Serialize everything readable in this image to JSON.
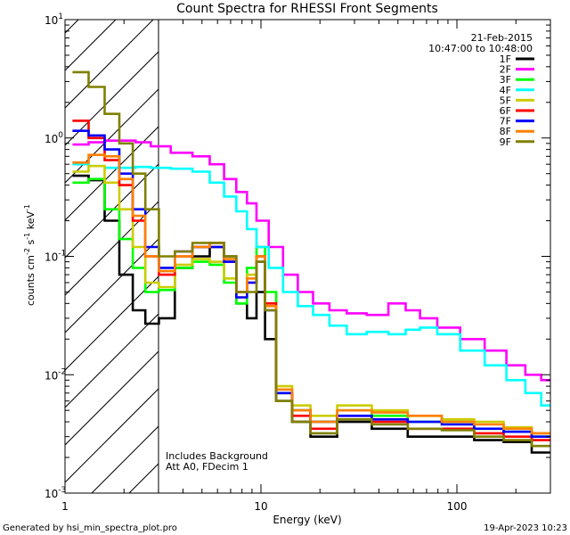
{
  "chart_data": {
    "type": "line",
    "title": "Count Spectra for RHESSI Front Segments",
    "xlabel": "Energy (keV)",
    "ylabel_main": "counts cm",
    "ylabel_exp1": "-2",
    "ylabel_mid": " s",
    "ylabel_exp2": "-1",
    "ylabel_end": " keV",
    "ylabel_exp3": "-1",
    "x_scale": "log",
    "y_scale": "log",
    "xlim": [
      1,
      300
    ],
    "ylim": [
      0.001,
      10
    ],
    "x_ticks": [
      {
        "value": 1,
        "label": "1"
      },
      {
        "value": 10,
        "label": "10"
      },
      {
        "value": 100,
        "label": "100"
      }
    ],
    "y_ticks": [
      {
        "value": 10,
        "base": "10",
        "exp": "1"
      },
      {
        "value": 1,
        "base": "10",
        "exp": "0"
      },
      {
        "value": 0.1,
        "base": "10",
        "exp": "-1"
      },
      {
        "value": 0.01,
        "base": "10",
        "exp": "-2"
      },
      {
        "value": 0.001,
        "base": "10",
        "exp": "-3"
      }
    ],
    "hatched_region": {
      "from": 1,
      "to": 3
    },
    "date": "21-Feb-2015",
    "time_range": "10:47:00 to 10:48:00",
    "annotations": [
      "Includes Background",
      "Att A0, FDecim 1"
    ],
    "footer_left": "Generated by hsi_min_spectra_plot.pro",
    "footer_right": "19-Apr-2023 10:23",
    "series": [
      {
        "name": "1F",
        "color": "#000000",
        "points": [
          [
            1.2,
            0.48
          ],
          [
            1.45,
            0.44
          ],
          [
            1.75,
            0.2
          ],
          [
            2.05,
            0.07
          ],
          [
            2.4,
            0.035
          ],
          [
            2.75,
            0.027
          ],
          [
            3.3,
            0.03
          ],
          [
            4,
            0.08
          ],
          [
            5,
            0.1
          ],
          [
            6,
            0.12
          ],
          [
            7,
            0.1
          ],
          [
            8,
            0.04
          ],
          [
            9,
            0.03
          ],
          [
            10,
            0.05
          ],
          [
            11,
            0.02
          ],
          [
            13,
            0.006
          ],
          [
            16,
            0.004
          ],
          [
            20,
            0.003
          ],
          [
            30,
            0.004
          ],
          [
            45,
            0.0035
          ],
          [
            70,
            0.003
          ],
          [
            100,
            0.003
          ],
          [
            150,
            0.0028
          ],
          [
            200,
            0.0027
          ],
          [
            290,
            0.0022
          ]
        ]
      },
      {
        "name": "2F",
        "color": "#ff00ff",
        "points": [
          [
            1.2,
            0.88
          ],
          [
            1.45,
            0.92
          ],
          [
            1.75,
            0.95
          ],
          [
            2.1,
            0.95
          ],
          [
            2.5,
            0.92
          ],
          [
            3,
            0.85
          ],
          [
            4,
            0.75
          ],
          [
            5,
            0.7
          ],
          [
            6,
            0.6
          ],
          [
            7,
            0.45
          ],
          [
            8,
            0.35
          ],
          [
            9,
            0.28
          ],
          [
            10,
            0.2
          ],
          [
            12,
            0.12
          ],
          [
            14,
            0.07
          ],
          [
            17,
            0.05
          ],
          [
            20,
            0.04
          ],
          [
            25,
            0.035
          ],
          [
            30,
            0.033
          ],
          [
            40,
            0.032
          ],
          [
            50,
            0.04
          ],
          [
            60,
            0.035
          ],
          [
            70,
            0.03
          ],
          [
            90,
            0.025
          ],
          [
            120,
            0.02
          ],
          [
            160,
            0.016
          ],
          [
            200,
            0.012
          ],
          [
            250,
            0.01
          ],
          [
            290,
            0.009
          ]
        ]
      },
      {
        "name": "3F",
        "color": "#00ff00",
        "points": [
          [
            1.2,
            0.42
          ],
          [
            1.45,
            0.45
          ],
          [
            1.75,
            0.25
          ],
          [
            2.05,
            0.14
          ],
          [
            2.4,
            0.08
          ],
          [
            2.75,
            0.05
          ],
          [
            3.3,
            0.052
          ],
          [
            4,
            0.08
          ],
          [
            5,
            0.09
          ],
          [
            6,
            0.085
          ],
          [
            7,
            0.06
          ],
          [
            8,
            0.04
          ],
          [
            9,
            0.08
          ],
          [
            10,
            0.12
          ],
          [
            11,
            0.05
          ],
          [
            13,
            0.007
          ],
          [
            16,
            0.005
          ],
          [
            20,
            0.004
          ],
          [
            30,
            0.005
          ],
          [
            45,
            0.0045
          ],
          [
            70,
            0.004
          ],
          [
            100,
            0.004
          ],
          [
            150,
            0.0035
          ],
          [
            200,
            0.0033
          ],
          [
            290,
            0.003
          ]
        ]
      },
      {
        "name": "4F",
        "color": "#00ffff",
        "points": [
          [
            1.2,
            0.6
          ],
          [
            1.45,
            0.58
          ],
          [
            1.75,
            0.56
          ],
          [
            2.1,
            0.56
          ],
          [
            2.5,
            0.57
          ],
          [
            3,
            0.56
          ],
          [
            4,
            0.55
          ],
          [
            5,
            0.52
          ],
          [
            6,
            0.42
          ],
          [
            7,
            0.32
          ],
          [
            8,
            0.24
          ],
          [
            9,
            0.17
          ],
          [
            10,
            0.12
          ],
          [
            12,
            0.08
          ],
          [
            14,
            0.05
          ],
          [
            17,
            0.038
          ],
          [
            20,
            0.032
          ],
          [
            25,
            0.026
          ],
          [
            30,
            0.022
          ],
          [
            40,
            0.023
          ],
          [
            50,
            0.022
          ],
          [
            60,
            0.024
          ],
          [
            70,
            0.025
          ],
          [
            90,
            0.022
          ],
          [
            120,
            0.016
          ],
          [
            160,
            0.012
          ],
          [
            200,
            0.009
          ],
          [
            250,
            0.007
          ],
          [
            290,
            0.0055
          ]
        ]
      },
      {
        "name": "5F",
        "color": "#cccc00",
        "points": [
          [
            1.2,
            0.52
          ],
          [
            1.45,
            0.58
          ],
          [
            1.75,
            0.42
          ],
          [
            2.05,
            0.25
          ],
          [
            2.4,
            0.12
          ],
          [
            2.75,
            0.06
          ],
          [
            3.3,
            0.055
          ],
          [
            4,
            0.085
          ],
          [
            5,
            0.095
          ],
          [
            6,
            0.09
          ],
          [
            7,
            0.065
          ],
          [
            8,
            0.045
          ],
          [
            9,
            0.07
          ],
          [
            10,
            0.1
          ],
          [
            11,
            0.04
          ],
          [
            13,
            0.008
          ],
          [
            16,
            0.0055
          ],
          [
            20,
            0.0045
          ],
          [
            30,
            0.0055
          ],
          [
            45,
            0.005
          ],
          [
            70,
            0.0045
          ],
          [
            100,
            0.0042
          ],
          [
            150,
            0.004
          ],
          [
            200,
            0.0036
          ],
          [
            290,
            0.0032
          ]
        ]
      },
      {
        "name": "6F",
        "color": "#ff0000",
        "points": [
          [
            1.2,
            1.4
          ],
          [
            1.45,
            1.0
          ],
          [
            1.75,
            0.65
          ],
          [
            2.05,
            0.4
          ],
          [
            2.4,
            0.2
          ],
          [
            2.75,
            0.1
          ],
          [
            3.3,
            0.07
          ],
          [
            4,
            0.1
          ],
          [
            5,
            0.12
          ],
          [
            6,
            0.13
          ],
          [
            7,
            0.09
          ],
          [
            8,
            0.05
          ],
          [
            9,
            0.06
          ],
          [
            10,
            0.1
          ],
          [
            11,
            0.04
          ],
          [
            13,
            0.007
          ],
          [
            16,
            0.0045
          ],
          [
            20,
            0.0035
          ],
          [
            30,
            0.0045
          ],
          [
            45,
            0.004
          ],
          [
            70,
            0.0035
          ],
          [
            100,
            0.0035
          ],
          [
            150,
            0.0032
          ],
          [
            200,
            0.003
          ],
          [
            290,
            0.0028
          ]
        ]
      },
      {
        "name": "7F",
        "color": "#0000ff",
        "points": [
          [
            1.2,
            1.15
          ],
          [
            1.45,
            1.05
          ],
          [
            1.75,
            0.8
          ],
          [
            2.05,
            0.5
          ],
          [
            2.4,
            0.25
          ],
          [
            2.75,
            0.12
          ],
          [
            3.3,
            0.08
          ],
          [
            4,
            0.11
          ],
          [
            5,
            0.12
          ],
          [
            6,
            0.12
          ],
          [
            7,
            0.09
          ],
          [
            8,
            0.045
          ],
          [
            9,
            0.06
          ],
          [
            10,
            0.09
          ],
          [
            11,
            0.035
          ],
          [
            13,
            0.007
          ],
          [
            16,
            0.005
          ],
          [
            20,
            0.004
          ],
          [
            30,
            0.0045
          ],
          [
            45,
            0.0042
          ],
          [
            70,
            0.004
          ],
          [
            100,
            0.0038
          ],
          [
            150,
            0.0035
          ],
          [
            200,
            0.0033
          ],
          [
            290,
            0.003
          ]
        ]
      },
      {
        "name": "8F",
        "color": "#ff8000",
        "points": [
          [
            1.2,
            0.62
          ],
          [
            1.45,
            0.72
          ],
          [
            1.75,
            0.7
          ],
          [
            2.05,
            0.45
          ],
          [
            2.4,
            0.22
          ],
          [
            2.75,
            0.1
          ],
          [
            3.3,
            0.075
          ],
          [
            4,
            0.1
          ],
          [
            5,
            0.12
          ],
          [
            6,
            0.13
          ],
          [
            7,
            0.095
          ],
          [
            8,
            0.05
          ],
          [
            9,
            0.065
          ],
          [
            10,
            0.1
          ],
          [
            11,
            0.038
          ],
          [
            13,
            0.0075
          ],
          [
            16,
            0.005
          ],
          [
            20,
            0.004
          ],
          [
            30,
            0.005
          ],
          [
            45,
            0.0048
          ],
          [
            70,
            0.0045
          ],
          [
            100,
            0.004
          ],
          [
            150,
            0.0038
          ],
          [
            200,
            0.0035
          ],
          [
            290,
            0.0032
          ]
        ]
      },
      {
        "name": "9F",
        "color": "#808000",
        "points": [
          [
            1.2,
            3.6
          ],
          [
            1.45,
            2.7
          ],
          [
            1.75,
            1.6
          ],
          [
            2.05,
            0.9
          ],
          [
            2.4,
            0.5
          ],
          [
            2.75,
            0.25
          ],
          [
            3.3,
            0.1
          ],
          [
            4,
            0.11
          ],
          [
            5,
            0.13
          ],
          [
            6,
            0.13
          ],
          [
            7,
            0.1
          ],
          [
            8,
            0.05
          ],
          [
            9,
            0.05
          ],
          [
            10,
            0.09
          ],
          [
            11,
            0.035
          ],
          [
            13,
            0.006
          ],
          [
            16,
            0.004
          ],
          [
            20,
            0.0032
          ],
          [
            30,
            0.0042
          ],
          [
            45,
            0.0038
          ],
          [
            70,
            0.0035
          ],
          [
            100,
            0.0034
          ],
          [
            150,
            0.003
          ],
          [
            200,
            0.0028
          ],
          [
            290,
            0.0025
          ]
        ]
      }
    ]
  }
}
